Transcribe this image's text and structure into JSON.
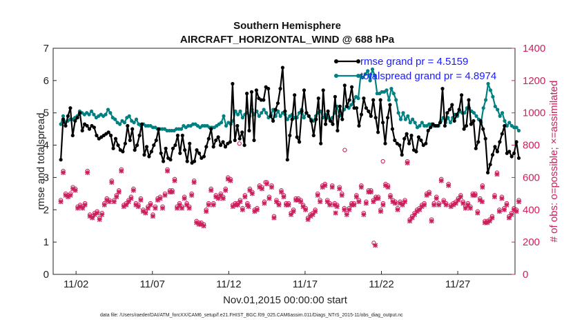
{
  "chart_data": {
    "type": "line",
    "title": "Southern Hemisphere",
    "subtitle": "AIRCRAFT_HORIZONTAL_WIND @ 688 hPa",
    "xlabel": "Nov.01,2015 00:00:00 start",
    "ylabel": "rmse and totalspread",
    "y2label": "# of obs: o=possible; ×=assimilated",
    "footnote": "data file: /Users/raeder/DAI/ATM_forcXX/CAM6_setup/f.e21.FHIST_BGC.f09_025.CAM6assim.011/Diags_NTrS_2015-11/obs_diag_output.nc",
    "xlim": [
      0.5,
      30.75
    ],
    "ylim": [
      0,
      7
    ],
    "y2lim": [
      0,
      1400
    ],
    "xticks": [
      2,
      7,
      12,
      17,
      22,
      27
    ],
    "xtick_labels": [
      "11/02",
      "11/07",
      "11/12",
      "11/17",
      "11/22",
      "11/27"
    ],
    "yticks": [
      0,
      1,
      2,
      3,
      4,
      5,
      6,
      7
    ],
    "y2ticks": [
      0,
      200,
      400,
      600,
      800,
      1000,
      1200,
      1400
    ],
    "legend_position": "top-right",
    "colors": {
      "rmse": "#000000",
      "spread": "#008080",
      "obs": "#cc1f5e",
      "legend_text": "#1a1aff",
      "axis": "#222222"
    },
    "series": [
      {
        "name": "rmse grand pr = 4.5159",
        "color": "#000000",
        "marker": "circle",
        "values": [
          3.55,
          4.8,
          4.6,
          4.9,
          5.15,
          4.3,
          4.75,
          4.85,
          5.0,
          4.45,
          4.65,
          4.6,
          4.5,
          4.6,
          4.55,
          4.3,
          4.2,
          4.25,
          4.3,
          4.35,
          4.4,
          4.3,
          3.9,
          4.2,
          4.0,
          3.85,
          3.8,
          4.05,
          4.6,
          4.15,
          4.5,
          3.85,
          4.0,
          4.3,
          4.65,
          3.7,
          3.95,
          3.65,
          3.8,
          4.0,
          4.15,
          4.5,
          3.75,
          3.5,
          3.9,
          3.6,
          3.55,
          3.9,
          4.0,
          4.3,
          3.75,
          4.3,
          3.85,
          3.5,
          4.05,
          3.45,
          3.5,
          3.85,
          3.75,
          3.6,
          3.65,
          3.95,
          4.2,
          4.5,
          3.95,
          4.15,
          4.25,
          4.0,
          4.1,
          3.95,
          4.05,
          4.1,
          5.9,
          4.15,
          4.6,
          4.2,
          4.4,
          4.0,
          5.6,
          4.45,
          5.65,
          4.15,
          5.7,
          5.45,
          5.4,
          5.4,
          5.8,
          5.75,
          4.9,
          4.75,
          5.1,
          5.3,
          5.75,
          6.4,
          5.05,
          3.55,
          4.3,
          4.8,
          5.55,
          4.25,
          4.1,
          5.05,
          5.7,
          5.0,
          4.9,
          4.75,
          4.3,
          4.8,
          5.45,
          4.05,
          5.7,
          4.65,
          5.05,
          4.75,
          4.65,
          5.5,
          4.45,
          5.2,
          4.8,
          5.85,
          5.2,
          5.4,
          5.8,
          5.15,
          5.15,
          4.6,
          4.95,
          5.45,
          5.15,
          5.05,
          4.9,
          5.4,
          4.85,
          4.4,
          5.4,
          4.7,
          4.05,
          4.85,
          5.25,
          4.5,
          4.15,
          4.05,
          4.0,
          3.7,
          4.2,
          4.35,
          4.05,
          4.3,
          3.85,
          3.8,
          4.25,
          4.15,
          4.0,
          4.05,
          4.45,
          4.55,
          4.65,
          4.6,
          4.6,
          4.7,
          5.75,
          4.6,
          5.0,
          5.1,
          5.25,
          4.75,
          4.95,
          5.1,
          5.55,
          4.5,
          4.6,
          5.4,
          4.65,
          4.75,
          3.9,
          4.1,
          4.75,
          4.5,
          4.2,
          3.15,
          3.4,
          3.7,
          3.95,
          3.8,
          4.1,
          4.35,
          4.6,
          3.75,
          3.8,
          3.65,
          3.75,
          4.1,
          3.6
        ]
      },
      {
        "name": "totalspread grand pr = 4.8974",
        "color": "#008080",
        "marker": "circle",
        "values": [
          4.65,
          4.9,
          4.7,
          4.75,
          4.8,
          4.8,
          4.85,
          4.9,
          5.05,
          5.0,
          4.95,
          5.0,
          4.95,
          5.05,
          4.95,
          4.85,
          4.9,
          4.95,
          4.9,
          4.95,
          5.1,
          5.0,
          4.85,
          4.8,
          4.7,
          4.65,
          4.75,
          4.7,
          4.85,
          4.9,
          4.75,
          4.7,
          4.8,
          4.65,
          4.6,
          4.65,
          4.6,
          4.6,
          4.6,
          4.55,
          4.55,
          4.5,
          4.5,
          4.5,
          4.5,
          4.45,
          4.45,
          4.45,
          4.45,
          4.5,
          4.5,
          4.5,
          4.6,
          4.55,
          4.6,
          4.6,
          4.65,
          4.65,
          4.6,
          4.55,
          4.6,
          4.6,
          4.6,
          4.55,
          4.55,
          4.55,
          4.6,
          4.65,
          4.7,
          4.9,
          4.6,
          4.7,
          4.65,
          4.75,
          5.05,
          4.95,
          5.05,
          4.85,
          4.95,
          5.0,
          4.9,
          5.1,
          4.95,
          5.05,
          4.9,
          5.0,
          5.1,
          5.0,
          4.85,
          4.95,
          5.1,
          4.9,
          5.05,
          4.9,
          5.0,
          4.95,
          4.8,
          4.9,
          4.95,
          4.85,
          4.85,
          5.0,
          5.1,
          4.85,
          5.0,
          4.9,
          4.8,
          4.75,
          4.9,
          5.0,
          5.05,
          4.85,
          4.95,
          4.85,
          4.8,
          4.85,
          5.0,
          5.2,
          4.9,
          4.95,
          5.1,
          5.2,
          5.15,
          5.25,
          5.35,
          5.5,
          5.45,
          6.15,
          6.1,
          6.2,
          6.3,
          6.0,
          6.35,
          6.15,
          5.6,
          5.6,
          5.65,
          5.65,
          5.7,
          5.4,
          5.75,
          5.6,
          5.4,
          5.0,
          4.8,
          5.0,
          4.8,
          4.9,
          4.7,
          4.8,
          4.7,
          4.55,
          4.6,
          4.7,
          4.6,
          4.6,
          4.65,
          4.65,
          4.6,
          4.6,
          4.6,
          4.75,
          4.85,
          4.7,
          4.85,
          4.7,
          4.85,
          4.95,
          4.9,
          5.05,
          5.0,
          5.0,
          5.15,
          5.15,
          5.05,
          5.0,
          4.9,
          4.8,
          4.7,
          5.15,
          5.4,
          5.9,
          5.7,
          5.5,
          5.2,
          5.1,
          4.9,
          5.0,
          4.75,
          4.6,
          4.7,
          4.6,
          4.55,
          4.55,
          4.45
        ]
      }
    ],
    "obs_possible": [
      460,
      640,
      500,
      490,
      500,
      540,
      530,
      420,
      430,
      420,
      440,
      640,
      370,
      360,
      380,
      390,
      350,
      380,
      440,
      470,
      460,
      580,
      460,
      490,
      520,
      650,
      430,
      440,
      460,
      480,
      530,
      440,
      430,
      470,
      400,
      390,
      420,
      440,
      370,
      420,
      470,
      480,
      420,
      500,
      650,
      520,
      520,
      590,
      420,
      440,
      420,
      480,
      440,
      420,
      500,
      580,
      330,
      320,
      320,
      310,
      400,
      440,
      530,
      440,
      490,
      480,
      500,
      480,
      530,
      600,
      590,
      430,
      440,
      440,
      460,
      410,
      490,
      440,
      530,
      510,
      400,
      410,
      550,
      540,
      450,
      570,
      480,
      550,
      360,
      460,
      440,
      520,
      490,
      440,
      440,
      380,
      400,
      470,
      470,
      460,
      430,
      410,
      350,
      370,
      380,
      400,
      500,
      460,
      550,
      560,
      460,
      440,
      550,
      440,
      430,
      540,
      500,
      410,
      380,
      410,
      440,
      440,
      490,
      460,
      550,
      380,
      450,
      520,
      520,
      460,
      480,
      480,
      400,
      440,
      560,
      550,
      490,
      460,
      450,
      410,
      450,
      440,
      460,
      700,
      340,
      360,
      380,
      400,
      410,
      430,
      440,
      500,
      510,
      340,
      440,
      480,
      440,
      590,
      460,
      440,
      560,
      430,
      440,
      450,
      470,
      490,
      450,
      420,
      440,
      420,
      500,
      500,
      390,
      470,
      550,
      330,
      330,
      340,
      360,
      490,
      630,
      400,
      480,
      410,
      440,
      360,
      380,
      410,
      400,
      460
    ],
    "obs_assimilated": [
      450,
      630,
      490,
      480,
      490,
      530,
      520,
      410,
      420,
      410,
      430,
      630,
      360,
      350,
      370,
      380,
      340,
      370,
      430,
      460,
      450,
      570,
      450,
      480,
      510,
      640,
      420,
      430,
      450,
      470,
      520,
      430,
      420,
      460,
      390,
      380,
      410,
      430,
      360,
      410,
      460,
      470,
      410,
      490,
      640,
      510,
      510,
      580,
      410,
      430,
      410,
      470,
      430,
      410,
      490,
      570,
      320,
      310,
      310,
      300,
      390,
      430,
      520,
      430,
      480,
      470,
      490,
      470,
      520,
      590,
      580,
      420,
      430,
      430,
      450,
      400,
      480,
      430,
      520,
      500,
      390,
      400,
      540,
      530,
      440,
      560,
      470,
      540,
      350,
      450,
      430,
      510,
      480,
      430,
      430,
      370,
      390,
      460,
      460,
      450,
      420,
      400,
      340,
      360,
      370,
      390,
      490,
      450,
      540,
      550,
      450,
      430,
      540,
      430,
      420,
      530,
      490,
      400,
      370,
      400,
      430,
      430,
      480,
      450,
      540,
      370,
      440,
      510,
      510,
      450,
      470,
      470,
      390,
      430,
      550,
      540,
      480,
      450,
      440,
      400,
      440,
      430,
      450,
      690,
      330,
      350,
      370,
      390,
      400,
      420,
      430,
      490,
      500,
      330,
      430,
      470,
      430,
      580,
      450,
      430,
      550,
      420,
      430,
      440,
      460,
      480,
      440,
      410,
      430,
      410,
      490,
      490,
      380,
      460,
      540,
      320,
      320,
      330,
      350,
      480,
      620,
      390,
      470,
      400,
      430,
      350,
      370,
      400,
      390,
      450
    ],
    "obs_extra_possible": [
      {
        "day": 22.1,
        "count": 700
      },
      {
        "day": 19.6,
        "count": 770
      },
      {
        "day": 21.5,
        "count": 195
      },
      {
        "day": 14.4,
        "count": 570
      },
      {
        "day": 12.7,
        "count": 810
      }
    ],
    "obs_extra_assimilated": [
      {
        "day": 21.6,
        "count": 180
      },
      {
        "day": 19.0,
        "count": 380
      },
      {
        "day": 13.3,
        "count": 420
      },
      {
        "day": 28.6,
        "count": 450
      }
    ]
  }
}
